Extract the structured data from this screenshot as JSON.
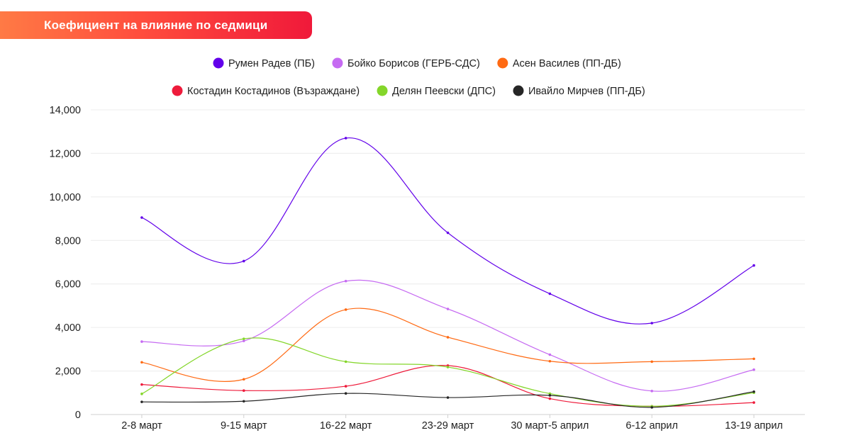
{
  "header": {
    "title": "Коефициент на влияние по седмици"
  },
  "chart_data": {
    "type": "line",
    "title": "Коефициент на влияние по седмици",
    "xlabel": "",
    "ylabel": "",
    "categories": [
      "2-8 март",
      "9-15 март",
      "16-22 март",
      "23-29 март",
      "30 март-5 април",
      "6-12 април",
      "13-19 април"
    ],
    "ylim": [
      0,
      14000
    ],
    "yticks": [
      0,
      2000,
      4000,
      6000,
      8000,
      10000,
      12000,
      14000
    ],
    "ytick_labels": [
      "0",
      "2,000",
      "4,000",
      "6,000",
      "8,000",
      "10,000",
      "12,000",
      "14,000"
    ],
    "grid": true,
    "legend_position": "top",
    "series": [
      {
        "name": "Румен Радев (ПБ)",
        "color": "#6200ea",
        "values": [
          9050,
          7050,
          12700,
          8350,
          5550,
          4200,
          6850
        ]
      },
      {
        "name": "Бойко Борисов (ГЕРБ-СДС)",
        "color": "#c66bf2",
        "values": [
          3350,
          3380,
          6130,
          4850,
          2750,
          1080,
          2060
        ]
      },
      {
        "name": "Асен Василев (ПП-ДБ)",
        "color": "#ff6a13",
        "values": [
          2400,
          1620,
          4820,
          3550,
          2450,
          2430,
          2560
        ]
      },
      {
        "name": "Костадин Костадинов (Възраждане)",
        "color": "#ee1b3b",
        "values": [
          1380,
          1100,
          1300,
          2250,
          730,
          380,
          550
        ]
      },
      {
        "name": "Делян Пеевски (ДПС)",
        "color": "#84d62a",
        "values": [
          950,
          3480,
          2430,
          2180,
          960,
          380,
          1000
        ]
      },
      {
        "name": "Ивайло Мирчев (ПП-ДБ)",
        "color": "#262626",
        "values": [
          580,
          610,
          970,
          780,
          880,
          330,
          1050
        ]
      }
    ]
  }
}
